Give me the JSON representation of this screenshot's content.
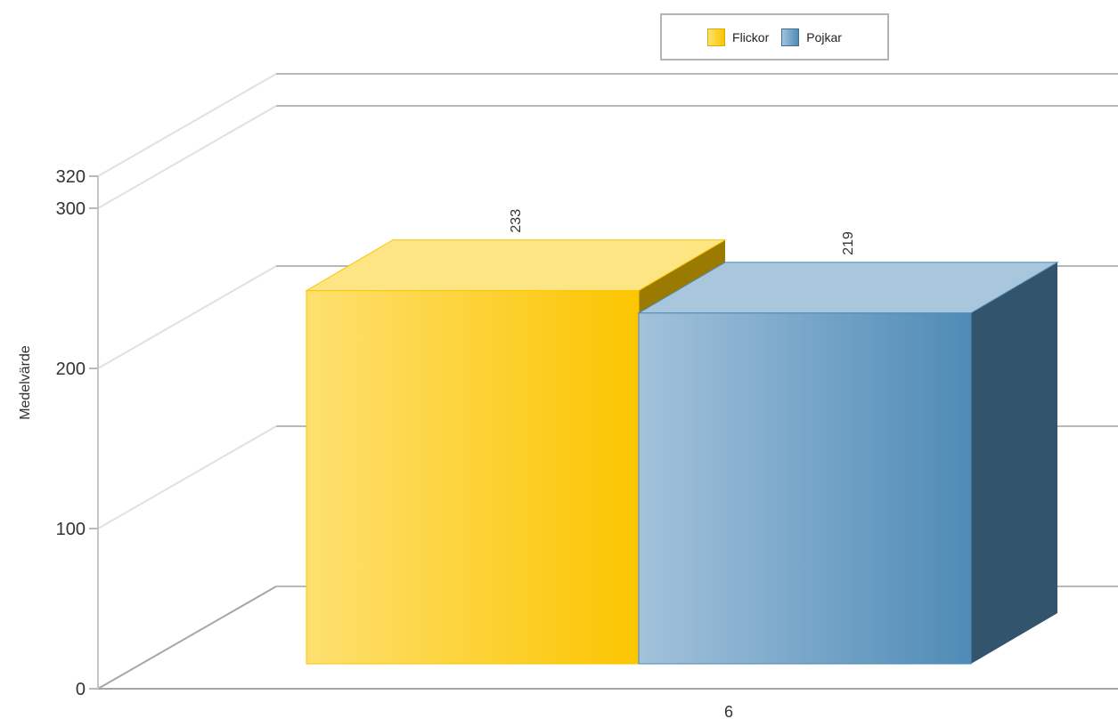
{
  "chart_data": {
    "type": "bar",
    "categories": [
      "6"
    ],
    "series": [
      {
        "name": "Flickor",
        "values": [
          233
        ]
      },
      {
        "name": "Pojkar",
        "values": [
          219
        ]
      }
    ],
    "ylabel": "Medelvärde",
    "xlabel": "",
    "ylim": [
      0,
      320
    ],
    "yticks": [
      0,
      100,
      200,
      300,
      320
    ],
    "grid": true,
    "legend_position": "top",
    "style": "3d",
    "colors": {
      "Flickor": {
        "front_light": "#fde070",
        "front_dark": "#fcc500",
        "top": "#fde583",
        "side": "#9a7a00"
      },
      "Pojkar": {
        "front_light": "#a3c2db",
        "front_dark": "#4e8bb6",
        "top": "#a8c6dc",
        "side": "#33546d"
      }
    }
  }
}
